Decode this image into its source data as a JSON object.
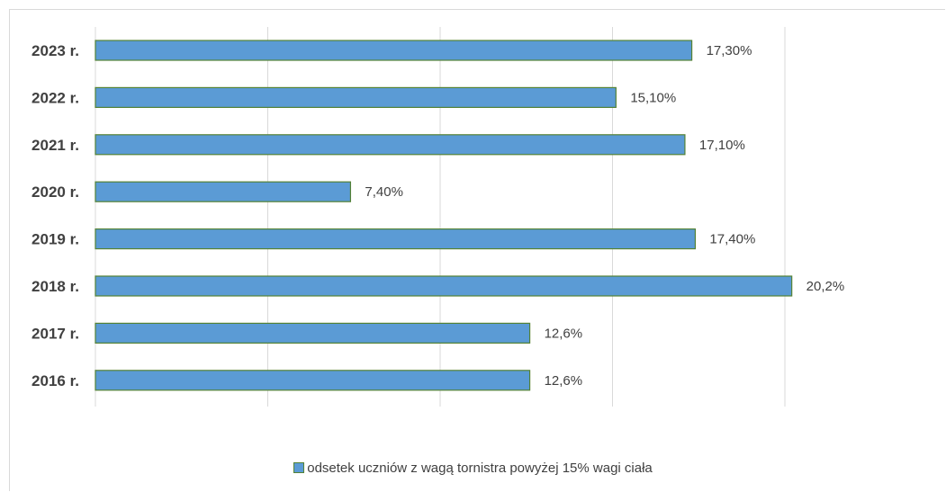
{
  "chart_data": {
    "type": "bar",
    "orientation": "horizontal",
    "categories": [
      "2023 r.",
      "2022 r.",
      "2021 r.",
      "2020 r.",
      "2019 r.",
      "2018 r.",
      "2017 r.",
      "2016 r."
    ],
    "series": [
      {
        "name": "odsetek uczniów z wagą tornistra powyżej 15% wagi ciała",
        "values": [
          17.3,
          15.1,
          17.1,
          7.4,
          17.4,
          20.2,
          12.6,
          12.6
        ],
        "labels": [
          "17,30%",
          "15,10%",
          "17,10%",
          "7,40%",
          "17,40%",
          "20,2%",
          "12,6%",
          "12,6%"
        ]
      }
    ],
    "xlim": [
      0,
      25
    ],
    "grid": true,
    "legend_position": "bottom",
    "colors": {
      "bar_fill": "#5b9bd5",
      "bar_border": "#548235",
      "grid": "#d9d9d9",
      "text": "#404040"
    }
  }
}
